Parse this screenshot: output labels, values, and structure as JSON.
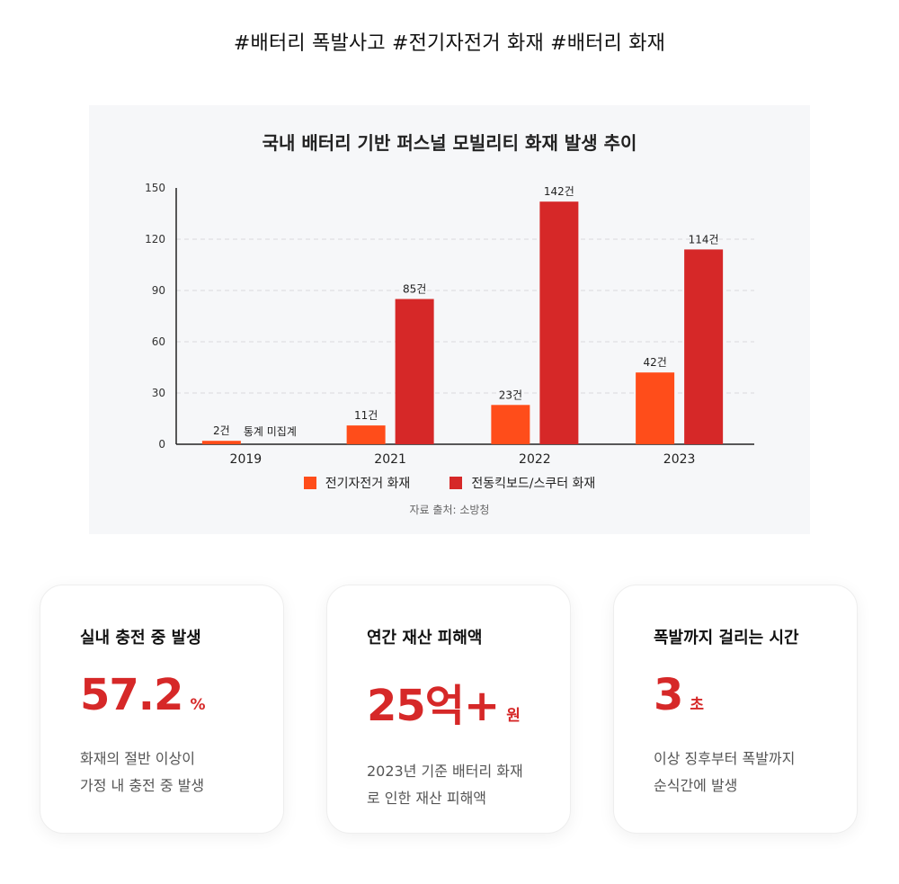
{
  "hashtags": "#배터리 폭발사고 #전기자전거 화재 #배터리 화재",
  "chart_data": {
    "type": "bar",
    "title": "국내 배터리 기반 퍼스널 모빌리티 화재 발생 추이",
    "categories": [
      "2019",
      "2021",
      "2022",
      "2023"
    ],
    "yticks": [
      "0",
      "30",
      "60",
      "90",
      "120",
      "150"
    ],
    "ylim": [
      0,
      150
    ],
    "grid": "horizontal-dashed",
    "legend_position": "bottom",
    "series": [
      {
        "name": "전기자전거 화재",
        "color": "#ff4d1a",
        "values": [
          2,
          11,
          23,
          42
        ],
        "labels": [
          "2건",
          "11건",
          "23건",
          "42건"
        ]
      },
      {
        "name": "전동킥보드/스쿠터 화재",
        "color": "#d62828",
        "values": [
          null,
          85,
          142,
          114
        ],
        "labels": [
          "통계 미집계",
          "85건",
          "142건",
          "114건"
        ]
      }
    ],
    "source": "자료 출처: 소방청"
  },
  "cards": [
    {
      "title": "실내 충전 중 발생",
      "value": "57.2",
      "unit": "%",
      "desc": "화재의 절반 이상이\n가정 내 충전 중 발생"
    },
    {
      "title": "연간 재산 피해액",
      "value": "25억+",
      "unit": "원",
      "desc": "2023년 기준 배터리 화재\n로 인한 재산 피해액"
    },
    {
      "title": "폭발까지 걸리는 시간",
      "value": "3",
      "unit": "초",
      "desc": "이상 징후부터 폭발까지\n순식간에 발생"
    }
  ]
}
